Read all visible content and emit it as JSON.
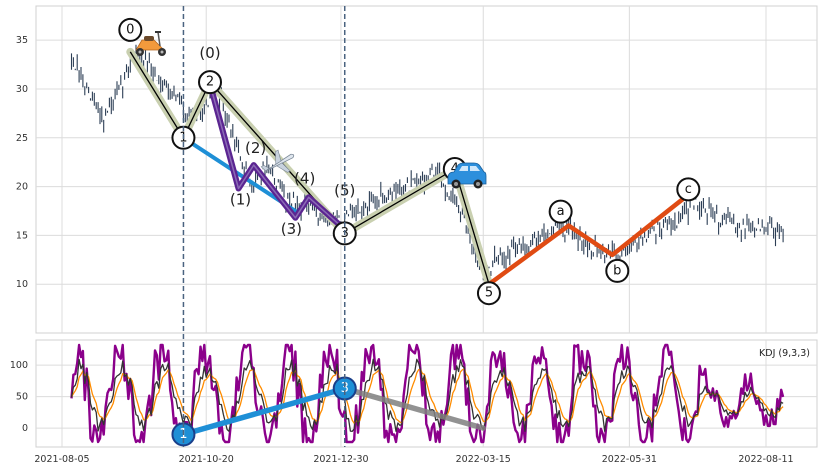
{
  "chart_data": [
    {
      "type": "line",
      "panel": "price",
      "ylim": [
        5,
        38.5
      ],
      "yticks": [
        "10",
        "15",
        "20",
        "25",
        "30",
        "35"
      ],
      "grid": true,
      "dates": [
        "2021-08-05",
        "2021-10-20",
        "2021-12-30",
        "2022-03-15",
        "2022-05-31",
        "2022-08-11"
      ],
      "price_path": [
        [
          "2021-08-10",
          33
        ],
        [
          "2021-08-20",
          29
        ],
        [
          "2021-08-27",
          27
        ],
        [
          "2021-09-05",
          30
        ],
        [
          "2021-09-12",
          34
        ],
        [
          "2021-09-20",
          32
        ],
        [
          "2021-10-01",
          30
        ],
        [
          "2021-10-12",
          27
        ],
        [
          "2021-10-20",
          28.5
        ],
        [
          "2021-10-25",
          30.5
        ],
        [
          "2021-11-05",
          24
        ],
        [
          "2021-11-12",
          20
        ],
        [
          "2021-11-20",
          22
        ],
        [
          "2021-12-01",
          19
        ],
        [
          "2021-12-10",
          18
        ],
        [
          "2021-12-20",
          17
        ],
        [
          "2021-12-30",
          16.5
        ],
        [
          "2022-01-10",
          17.5
        ],
        [
          "2022-01-20",
          19
        ],
        [
          "2022-02-05",
          20
        ],
        [
          "2022-02-18",
          21.5
        ],
        [
          "2022-03-01",
          18
        ],
        [
          "2022-03-10",
          14
        ],
        [
          "2022-03-15",
          11
        ],
        [
          "2022-03-25",
          13
        ],
        [
          "2022-04-10",
          14.5
        ],
        [
          "2022-04-25",
          16
        ],
        [
          "2022-05-10",
          14
        ],
        [
          "2022-05-25",
          13
        ],
        [
          "2022-06-10",
          15.5
        ],
        [
          "2022-06-25",
          16.5
        ],
        [
          "2022-07-05",
          18.5
        ],
        [
          "2022-07-15",
          17
        ],
        [
          "2022-07-30",
          16
        ],
        [
          "2022-08-20",
          15.5
        ]
      ],
      "waves": {
        "main": {
          "color": "#000000",
          "points": [
            [
              "2021-09-10",
              33.8,
              "0"
            ],
            [
              "2021-10-08",
              25,
              "1"
            ],
            [
              "2021-10-22",
              30.7,
              "2"
            ],
            [
              "2022-01-01",
              15.2,
              "3"
            ],
            [
              "2022-02-28",
              21.8,
              "4"
            ],
            [
              "2022-03-18",
              10,
              "5"
            ]
          ]
        },
        "correction": {
          "color": "#e04b13",
          "points": [
            [
              "2022-03-18",
              10,
              ""
            ],
            [
              "2022-04-29",
              16,
              "a"
            ],
            [
              "2022-05-22",
              13,
              "b"
            ],
            [
              "2022-06-30",
              19,
              "c"
            ]
          ]
        },
        "sub": {
          "color": "#5b2591",
          "points": [
            [
              "2021-10-22",
              30.5,
              "(0)"
            ],
            [
              "2021-11-06",
              19.8,
              "(1)"
            ],
            [
              "2021-11-14",
              22.2,
              "(2)"
            ],
            [
              "2021-12-06",
              16.8,
              "(3)"
            ],
            [
              "2021-12-13",
              18.9,
              "(4)"
            ],
            [
              "2022-01-01",
              15.6,
              "(5)"
            ]
          ]
        },
        "trend_blue": [
          [
            "2021-10-08",
            25
          ],
          [
            "2021-12-06",
            17.5
          ]
        ]
      },
      "vlines": [
        "2021-10-08",
        "2022-01-01"
      ]
    },
    {
      "type": "line",
      "panel": "indicator",
      "legend": "KDJ (9,3,3)",
      "ylim": [
        -30,
        140
      ],
      "yticks": [
        "0",
        "50",
        "100"
      ],
      "series": [
        {
          "key": "J",
          "color": "#8b008b"
        },
        {
          "key": "D",
          "color": "#ff8c00"
        },
        {
          "key": "K",
          "color": "#333333"
        }
      ],
      "segments": [
        {
          "from": [
            "2021-10-08",
            -10
          ],
          "to": [
            "2022-01-01",
            63
          ],
          "color": "#1e8fd6",
          "from_label": "1",
          "to_label": "3"
        },
        {
          "from": [
            "2022-01-01",
            63
          ],
          "to": [
            "2022-03-15",
            0
          ],
          "color": "#808080"
        }
      ]
    }
  ]
}
